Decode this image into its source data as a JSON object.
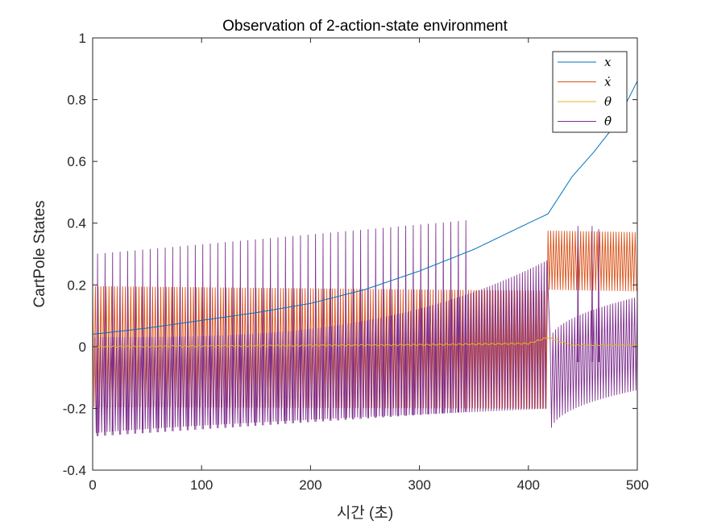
{
  "chart_data": {
    "type": "line",
    "title": "Observation of 2-action-state environment",
    "xlabel": "시간 (초)",
    "ylabel": "CartPole States",
    "xlim": [
      0,
      500
    ],
    "ylim": [
      -0.4,
      1
    ],
    "xticks": [
      0,
      100,
      200,
      300,
      400,
      500
    ],
    "xtick_labels": [
      "0",
      "100",
      "200",
      "300",
      "400",
      "500"
    ],
    "yticks": [
      -0.4,
      -0.2,
      0,
      0.2,
      0.4,
      0.6,
      0.8,
      1
    ],
    "ytick_labels": [
      "-0.4",
      "-0.2",
      "0",
      "0.2",
      "0.4",
      "0.6",
      "0.8",
      "1"
    ],
    "grid": false,
    "legend_position": "top-right",
    "colors": {
      "x": "#0072BD",
      "x_dot": "#D95319",
      "theta": "#EDB120",
      "theta_dot": "#7E2F8E",
      "axes": "#262626"
    },
    "series": [
      {
        "name": "x",
        "legend_label": "x",
        "color": "#0072BD",
        "shape": "smooth",
        "points": [
          [
            0,
            0.04
          ],
          [
            50,
            0.06
          ],
          [
            100,
            0.085
          ],
          [
            150,
            0.11
          ],
          [
            200,
            0.14
          ],
          [
            250,
            0.185
          ],
          [
            300,
            0.245
          ],
          [
            350,
            0.315
          ],
          [
            400,
            0.4
          ],
          [
            418,
            0.43
          ],
          [
            440,
            0.55
          ],
          [
            460,
            0.63
          ],
          [
            480,
            0.72
          ],
          [
            500,
            0.86
          ]
        ]
      },
      {
        "name": "x_dot",
        "legend_label": "ẋ",
        "color": "#D95319",
        "shape": "oscillation",
        "segments": [
          {
            "x": [
              0,
              418
            ],
            "upper": [
              0.195,
              0.18
            ],
            "lower": [
              -0.195,
              -0.2
            ]
          },
          {
            "x": [
              418,
              500
            ],
            "upper": [
              0.375,
              0.37
            ],
            "lower": [
              0.185,
              0.18
            ]
          }
        ]
      },
      {
        "name": "theta",
        "legend_label": "θ",
        "color": "#EDB120",
        "shape": "smooth",
        "points": [
          [
            0,
            0.0
          ],
          [
            100,
            0.002
          ],
          [
            200,
            0.004
          ],
          [
            300,
            0.006
          ],
          [
            400,
            0.01
          ],
          [
            418,
            0.03
          ],
          [
            440,
            0.005
          ],
          [
            500,
            0.005
          ]
        ]
      },
      {
        "name": "theta_dot",
        "legend_label": "θ̇",
        "color": "#7E2F8E",
        "shape": "oscillation",
        "segments": [
          {
            "x": [
              2,
              418
            ],
            "upper": [
              0.03,
              0.28
            ],
            "lower": [
              -0.28,
              -0.2
            ],
            "upper_ease": 3,
            "lower_ease": 0.8
          },
          {
            "x": [
              420,
              500
            ],
            "upper": [
              0.02,
              0.16
            ],
            "lower": [
              -0.29,
              -0.14
            ],
            "upper_ease": 0.5,
            "lower_ease": 0.4
          }
        ],
        "spikes": {
          "x_range": [
            4,
            348
          ],
          "period": 6.9,
          "top": [
            0.3,
            0.41
          ],
          "bottom": [
            -0.29,
            -0.21
          ]
        },
        "late_spikes": [
          [
            445,
            0.39,
            -0.05
          ],
          [
            458,
            0.39,
            -0.05
          ],
          [
            464,
            0.38,
            -0.05
          ]
        ]
      }
    ]
  }
}
